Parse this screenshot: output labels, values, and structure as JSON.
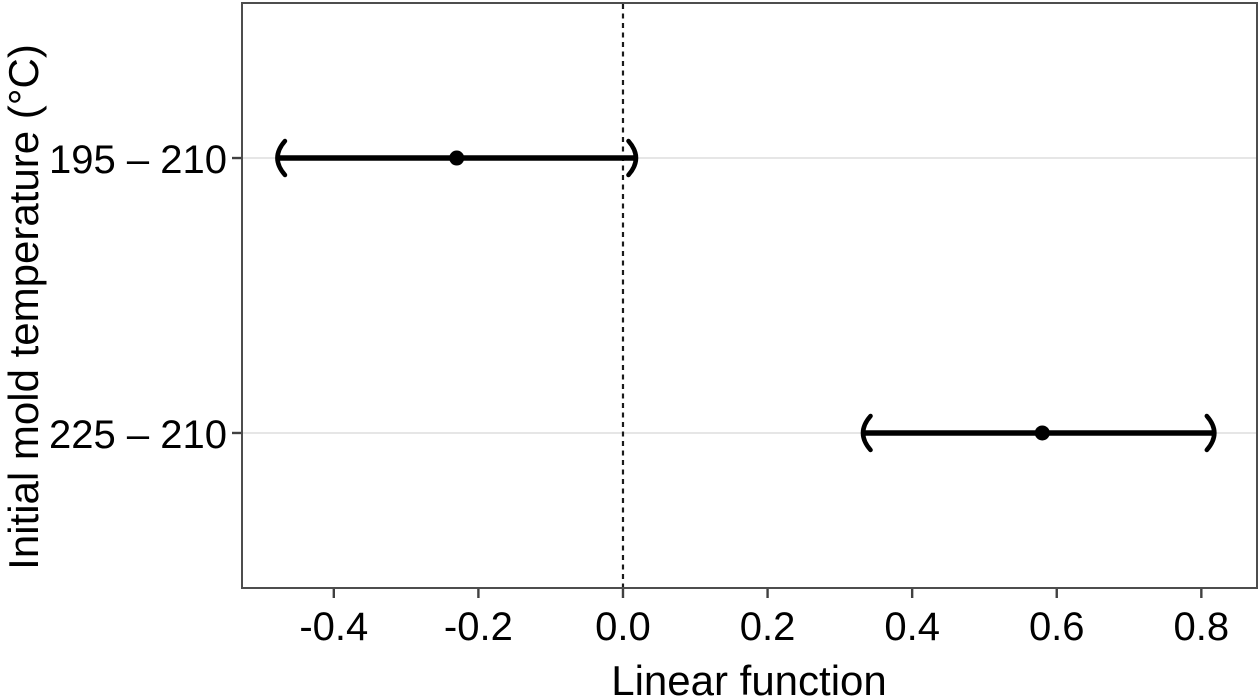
{
  "figure": {
    "background": "#ffffff",
    "border_color": "#4d4d4d",
    "grid_color": "#e6e6e6",
    "text_color": "#000000",
    "series_color": "#000000"
  },
  "chart_data": {
    "type": "scatter",
    "subtype": "horizontal-error-bars",
    "title": "",
    "xlabel": "Linear function",
    "ylabel": "Initial mold temperature (°C)",
    "xlim": [
      -0.527,
      0.877
    ],
    "xtick_values": [
      -0.4,
      -0.2,
      0.0,
      0.2,
      0.4,
      0.6,
      0.8
    ],
    "xtick_labels": [
      "-0.4",
      "-0.2",
      "0.0",
      "0.2",
      "0.4",
      "0.6",
      "0.8"
    ],
    "categories": [
      "195 – 210",
      "225 – 210"
    ],
    "category_order": "top-to-bottom",
    "series": [
      {
        "name": "contrast-estimates",
        "points": [
          {
            "category": "195 – 210",
            "estimate": -0.23,
            "ci_low": -0.48,
            "ci_high": 0.02
          },
          {
            "category": "225 – 210",
            "estimate": 0.58,
            "ci_low": 0.33,
            "ci_high": 0.82
          }
        ]
      }
    ],
    "reference_line_x": 0,
    "reference_line_style": "dashed",
    "grid": "horizontal-only",
    "legend": "none",
    "cap_style": "parenthesis"
  }
}
